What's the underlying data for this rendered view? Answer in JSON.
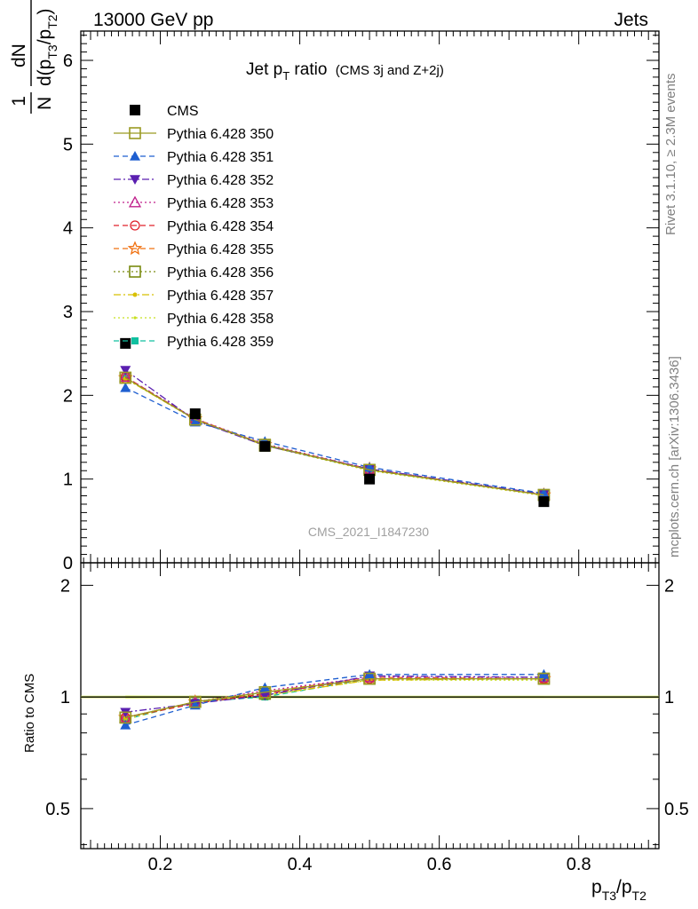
{
  "header": {
    "left": "13000 GeV pp",
    "right": "Jets"
  },
  "side_labels": {
    "rivet": "Rivet 3.1.10, ≥ 2.3M events",
    "mcplots": "mcplots.cern.ch [arXiv:1306.3436]"
  },
  "watermark": "CMS_2021_I1847230",
  "title": {
    "main": "Jet p",
    "sub": "T",
    "rest": " ratio",
    "small": "(CMS 3j and Z+2j)"
  },
  "axes": {
    "main_ylabel_num": "1",
    "main_ylabel_den": "N",
    "main_ylabel_frac_top": "dN",
    "main_ylabel_frac_bottom": "d(p",
    "ratio_ylabel": "Ratio to CMS",
    "xlabel": "p_T3/p_T2"
  },
  "chart_data": [
    {
      "type": "line",
      "panel": "main",
      "x": [
        0.15,
        0.25,
        0.35,
        0.5,
        0.75
      ],
      "xlim": [
        0.086,
        0.915
      ],
      "ylim": [
        0,
        6.35
      ],
      "x_ticks": [
        "0.2",
        "0.4",
        "0.6",
        "0.8"
      ],
      "y_ticks": [
        "0",
        "1",
        "2",
        "3",
        "4",
        "5",
        "6"
      ],
      "legend_position": "top-left",
      "series": [
        {
          "name": "CMS",
          "color": "#000000",
          "marker": "square-filled",
          "dash": "none",
          "values": [
            2.62,
            1.78,
            1.39,
            1.0,
            0.73
          ]
        },
        {
          "name": "Pythia 6.428 350",
          "color": "#9a9a22",
          "marker": "square-open",
          "dash": "solid",
          "values": [
            2.21,
            1.71,
            1.41,
            1.11,
            0.81
          ]
        },
        {
          "name": "Pythia 6.428 351",
          "color": "#1f5fd0",
          "marker": "triangle-up-filled",
          "dash": "dash",
          "values": [
            2.09,
            1.68,
            1.45,
            1.14,
            0.83
          ]
        },
        {
          "name": "Pythia 6.428 352",
          "color": "#5a1fb0",
          "marker": "triangle-down-filled",
          "dash": "dashdot",
          "values": [
            2.3,
            1.7,
            1.4,
            1.12,
            0.82
          ]
        },
        {
          "name": "Pythia 6.428 353",
          "color": "#c0208c",
          "marker": "triangle-up-open",
          "dash": "dot",
          "values": [
            2.22,
            1.72,
            1.42,
            1.12,
            0.81
          ]
        },
        {
          "name": "Pythia 6.428 354",
          "color": "#e0202a",
          "marker": "circle-open",
          "dash": "dash",
          "values": [
            2.22,
            1.71,
            1.41,
            1.11,
            0.81
          ]
        },
        {
          "name": "Pythia 6.428 355",
          "color": "#f07010",
          "marker": "star-open",
          "dash": "dash",
          "values": [
            2.21,
            1.72,
            1.41,
            1.12,
            0.81
          ]
        },
        {
          "name": "Pythia 6.428 356",
          "color": "#7a8a10",
          "marker": "square-open",
          "dash": "dot",
          "values": [
            2.21,
            1.71,
            1.4,
            1.11,
            0.81
          ]
        },
        {
          "name": "Pythia 6.428 357",
          "color": "#d8c000",
          "marker": "dot",
          "dash": "dashdot",
          "values": [
            2.2,
            1.71,
            1.4,
            1.11,
            0.81
          ]
        },
        {
          "name": "Pythia 6.428 358",
          "color": "#c8e020",
          "marker": "dot-small",
          "dash": "dot",
          "values": [
            2.2,
            1.71,
            1.4,
            1.1,
            0.8
          ]
        },
        {
          "name": "Pythia 6.428 359",
          "color": "#10c0a0",
          "marker": "square-filled-small",
          "dash": "dash",
          "values": [
            2.21,
            1.72,
            1.4,
            1.11,
            0.81
          ]
        }
      ]
    },
    {
      "type": "line",
      "panel": "ratio",
      "x": [
        0.15,
        0.25,
        0.35,
        0.5,
        0.75
      ],
      "xlim": [
        0.086,
        0.915
      ],
      "ylim": [
        0.39,
        2.3
      ],
      "y_scale": "log",
      "x_ticks": [
        "0.2",
        "0.4",
        "0.6",
        "0.8"
      ],
      "y_ticks": [
        "0.5",
        "1",
        "2"
      ],
      "reference_band": {
        "color": "#d8f060",
        "values": [
          0.99,
          0.995,
          0.995,
          0.995,
          0.995
        ],
        "upper": [
          1.01,
          1.005,
          1.005,
          1.005,
          1.005
        ]
      },
      "series": [
        {
          "name": "Pythia 6.428 350",
          "color": "#9a9a22",
          "marker": "square-open",
          "dash": "solid",
          "values": [
            0.88,
            0.97,
            1.03,
            1.12,
            1.12
          ]
        },
        {
          "name": "Pythia 6.428 351",
          "color": "#1f5fd0",
          "marker": "triangle-up-filled",
          "dash": "dash",
          "values": [
            0.84,
            0.95,
            1.06,
            1.15,
            1.15
          ]
        },
        {
          "name": "Pythia 6.428 352",
          "color": "#5a1fb0",
          "marker": "triangle-down-filled",
          "dash": "dashdot",
          "values": [
            0.91,
            0.96,
            1.01,
            1.14,
            1.13
          ]
        },
        {
          "name": "Pythia 6.428 353",
          "color": "#c0208c",
          "marker": "triangle-up-open",
          "dash": "dot",
          "values": [
            0.88,
            0.97,
            1.04,
            1.13,
            1.13
          ]
        },
        {
          "name": "Pythia 6.428 354",
          "color": "#e0202a",
          "marker": "circle-open",
          "dash": "dash",
          "values": [
            0.88,
            0.96,
            1.02,
            1.12,
            1.12
          ]
        },
        {
          "name": "Pythia 6.428 355",
          "color": "#f07010",
          "marker": "star-open",
          "dash": "dash",
          "values": [
            0.88,
            0.97,
            1.03,
            1.13,
            1.12
          ]
        },
        {
          "name": "Pythia 6.428 356",
          "color": "#7a8a10",
          "marker": "square-open",
          "dash": "dot",
          "values": [
            0.88,
            0.97,
            1.02,
            1.12,
            1.12
          ]
        },
        {
          "name": "Pythia 6.428 357",
          "color": "#d8c000",
          "marker": "dot",
          "dash": "dashdot",
          "values": [
            0.88,
            0.97,
            1.01,
            1.11,
            1.12
          ]
        },
        {
          "name": "Pythia 6.428 358",
          "color": "#c8e020",
          "marker": "dot-small",
          "dash": "dot",
          "values": [
            0.87,
            0.97,
            1.01,
            1.11,
            1.11
          ]
        },
        {
          "name": "Pythia 6.428 359",
          "color": "#10c0a0",
          "marker": "square-filled-small",
          "dash": "dash",
          "values": [
            0.87,
            0.97,
            1.0,
            1.12,
            1.12
          ]
        }
      ]
    }
  ]
}
